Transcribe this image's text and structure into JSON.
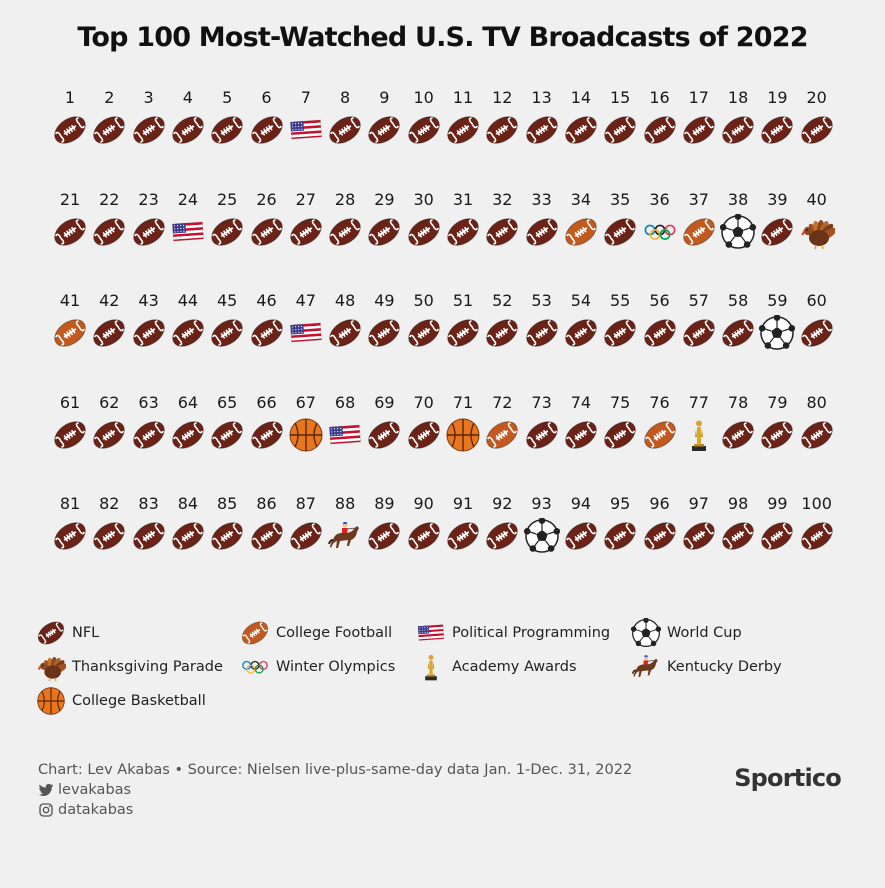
{
  "title": "Top 100 Most-Watched U.S. TV Broadcasts of 2022",
  "chart_data": {
    "type": "table",
    "categories": {
      "nfl": "NFL",
      "college_football": "College Football",
      "political": "Political Programming",
      "world_cup": "World Cup",
      "thanksgiving_parade": "Thanksgiving Parade",
      "winter_olympics": "Winter Olympics",
      "academy_awards": "Academy Awards",
      "kentucky_derby": "Kentucky Derby",
      "college_basketball": "College Basketball"
    },
    "legend_order": [
      "nfl",
      "college_football",
      "political",
      "world_cup",
      "thanksgiving_parade",
      "winter_olympics",
      "academy_awards",
      "kentucky_derby",
      "college_basketball"
    ],
    "columns": 20,
    "broadcasts": [
      {
        "rank": 1,
        "category": "nfl"
      },
      {
        "rank": 2,
        "category": "nfl"
      },
      {
        "rank": 3,
        "category": "nfl"
      },
      {
        "rank": 4,
        "category": "nfl"
      },
      {
        "rank": 5,
        "category": "nfl"
      },
      {
        "rank": 6,
        "category": "nfl"
      },
      {
        "rank": 7,
        "category": "political"
      },
      {
        "rank": 8,
        "category": "nfl"
      },
      {
        "rank": 9,
        "category": "nfl"
      },
      {
        "rank": 10,
        "category": "nfl"
      },
      {
        "rank": 11,
        "category": "nfl"
      },
      {
        "rank": 12,
        "category": "nfl"
      },
      {
        "rank": 13,
        "category": "nfl"
      },
      {
        "rank": 14,
        "category": "nfl"
      },
      {
        "rank": 15,
        "category": "nfl"
      },
      {
        "rank": 16,
        "category": "nfl"
      },
      {
        "rank": 17,
        "category": "nfl"
      },
      {
        "rank": 18,
        "category": "nfl"
      },
      {
        "rank": 19,
        "category": "nfl"
      },
      {
        "rank": 20,
        "category": "nfl"
      },
      {
        "rank": 21,
        "category": "nfl"
      },
      {
        "rank": 22,
        "category": "nfl"
      },
      {
        "rank": 23,
        "category": "nfl"
      },
      {
        "rank": 24,
        "category": "political"
      },
      {
        "rank": 25,
        "category": "nfl"
      },
      {
        "rank": 26,
        "category": "nfl"
      },
      {
        "rank": 27,
        "category": "nfl"
      },
      {
        "rank": 28,
        "category": "nfl"
      },
      {
        "rank": 29,
        "category": "nfl"
      },
      {
        "rank": 30,
        "category": "nfl"
      },
      {
        "rank": 31,
        "category": "nfl"
      },
      {
        "rank": 32,
        "category": "nfl"
      },
      {
        "rank": 33,
        "category": "nfl"
      },
      {
        "rank": 34,
        "category": "college_football"
      },
      {
        "rank": 35,
        "category": "nfl"
      },
      {
        "rank": 36,
        "category": "winter_olympics"
      },
      {
        "rank": 37,
        "category": "college_football"
      },
      {
        "rank": 38,
        "category": "world_cup"
      },
      {
        "rank": 39,
        "category": "nfl"
      },
      {
        "rank": 40,
        "category": "thanksgiving_parade"
      },
      {
        "rank": 41,
        "category": "college_football"
      },
      {
        "rank": 42,
        "category": "nfl"
      },
      {
        "rank": 43,
        "category": "nfl"
      },
      {
        "rank": 44,
        "category": "nfl"
      },
      {
        "rank": 45,
        "category": "nfl"
      },
      {
        "rank": 46,
        "category": "nfl"
      },
      {
        "rank": 47,
        "category": "political"
      },
      {
        "rank": 48,
        "category": "nfl"
      },
      {
        "rank": 49,
        "category": "nfl"
      },
      {
        "rank": 50,
        "category": "nfl"
      },
      {
        "rank": 51,
        "category": "nfl"
      },
      {
        "rank": 52,
        "category": "nfl"
      },
      {
        "rank": 53,
        "category": "nfl"
      },
      {
        "rank": 54,
        "category": "nfl"
      },
      {
        "rank": 55,
        "category": "nfl"
      },
      {
        "rank": 56,
        "category": "nfl"
      },
      {
        "rank": 57,
        "category": "nfl"
      },
      {
        "rank": 58,
        "category": "nfl"
      },
      {
        "rank": 59,
        "category": "world_cup"
      },
      {
        "rank": 60,
        "category": "nfl"
      },
      {
        "rank": 61,
        "category": "nfl"
      },
      {
        "rank": 62,
        "category": "nfl"
      },
      {
        "rank": 63,
        "category": "nfl"
      },
      {
        "rank": 64,
        "category": "nfl"
      },
      {
        "rank": 65,
        "category": "nfl"
      },
      {
        "rank": 66,
        "category": "nfl"
      },
      {
        "rank": 67,
        "category": "college_basketball"
      },
      {
        "rank": 68,
        "category": "political"
      },
      {
        "rank": 69,
        "category": "nfl"
      },
      {
        "rank": 70,
        "category": "nfl"
      },
      {
        "rank": 71,
        "category": "college_basketball"
      },
      {
        "rank": 72,
        "category": "college_football"
      },
      {
        "rank": 73,
        "category": "nfl"
      },
      {
        "rank": 74,
        "category": "nfl"
      },
      {
        "rank": 75,
        "category": "nfl"
      },
      {
        "rank": 76,
        "category": "college_football"
      },
      {
        "rank": 77,
        "category": "academy_awards"
      },
      {
        "rank": 78,
        "category": "nfl"
      },
      {
        "rank": 79,
        "category": "nfl"
      },
      {
        "rank": 80,
        "category": "nfl"
      },
      {
        "rank": 81,
        "category": "nfl"
      },
      {
        "rank": 82,
        "category": "nfl"
      },
      {
        "rank": 83,
        "category": "nfl"
      },
      {
        "rank": 84,
        "category": "nfl"
      },
      {
        "rank": 85,
        "category": "nfl"
      },
      {
        "rank": 86,
        "category": "nfl"
      },
      {
        "rank": 87,
        "category": "nfl"
      },
      {
        "rank": 88,
        "category": "kentucky_derby"
      },
      {
        "rank": 89,
        "category": "nfl"
      },
      {
        "rank": 90,
        "category": "nfl"
      },
      {
        "rank": 91,
        "category": "nfl"
      },
      {
        "rank": 92,
        "category": "nfl"
      },
      {
        "rank": 93,
        "category": "world_cup"
      },
      {
        "rank": 94,
        "category": "nfl"
      },
      {
        "rank": 95,
        "category": "nfl"
      },
      {
        "rank": 96,
        "category": "nfl"
      },
      {
        "rank": 97,
        "category": "nfl"
      },
      {
        "rank": 98,
        "category": "nfl"
      },
      {
        "rank": 99,
        "category": "nfl"
      },
      {
        "rank": 100,
        "category": "nfl"
      }
    ]
  },
  "footer": {
    "credit": "Chart: Lev Akabas • Source: Nielsen live-plus-same-day data Jan. 1-Dec. 31, 2022",
    "twitter": "levakabas",
    "instagram": "datakabas"
  },
  "brand": "Sportico",
  "colors": {
    "background": "#f0f0f0",
    "nfl_ball": "#6b2318",
    "college_ball": "#c2591f",
    "basketball": "#e8761f"
  }
}
